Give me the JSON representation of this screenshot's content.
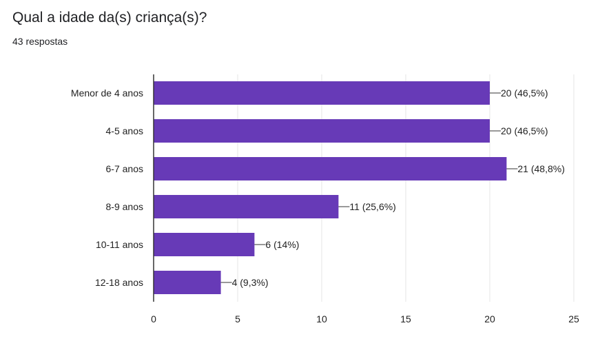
{
  "question": {
    "title": "Qual a idade da(s) criança(s)?",
    "responses": "43 respostas"
  },
  "colors": {
    "bar": "#673ab7",
    "grid": "#e6e6e6",
    "axis": "#333333",
    "text": "#222222"
  },
  "chart_data": {
    "type": "bar",
    "orientation": "horizontal",
    "categories": [
      "Menor de 4 anos",
      "4-5 anos",
      "6-7 anos",
      "8-9 anos",
      "10-11 anos",
      "12-18 anos"
    ],
    "values": [
      20,
      20,
      21,
      11,
      6,
      4
    ],
    "data_labels": [
      "20 (46,5%)",
      "20 (46,5%)",
      "21 (48,8%)",
      "11 (25,6%)",
      "6 (14%)",
      "4 (9,3%)"
    ],
    "xlim": [
      0,
      25
    ],
    "xticks": [
      0,
      5,
      10,
      15,
      20,
      25
    ],
    "grid": true,
    "title": "",
    "xlabel": "",
    "ylabel": ""
  }
}
